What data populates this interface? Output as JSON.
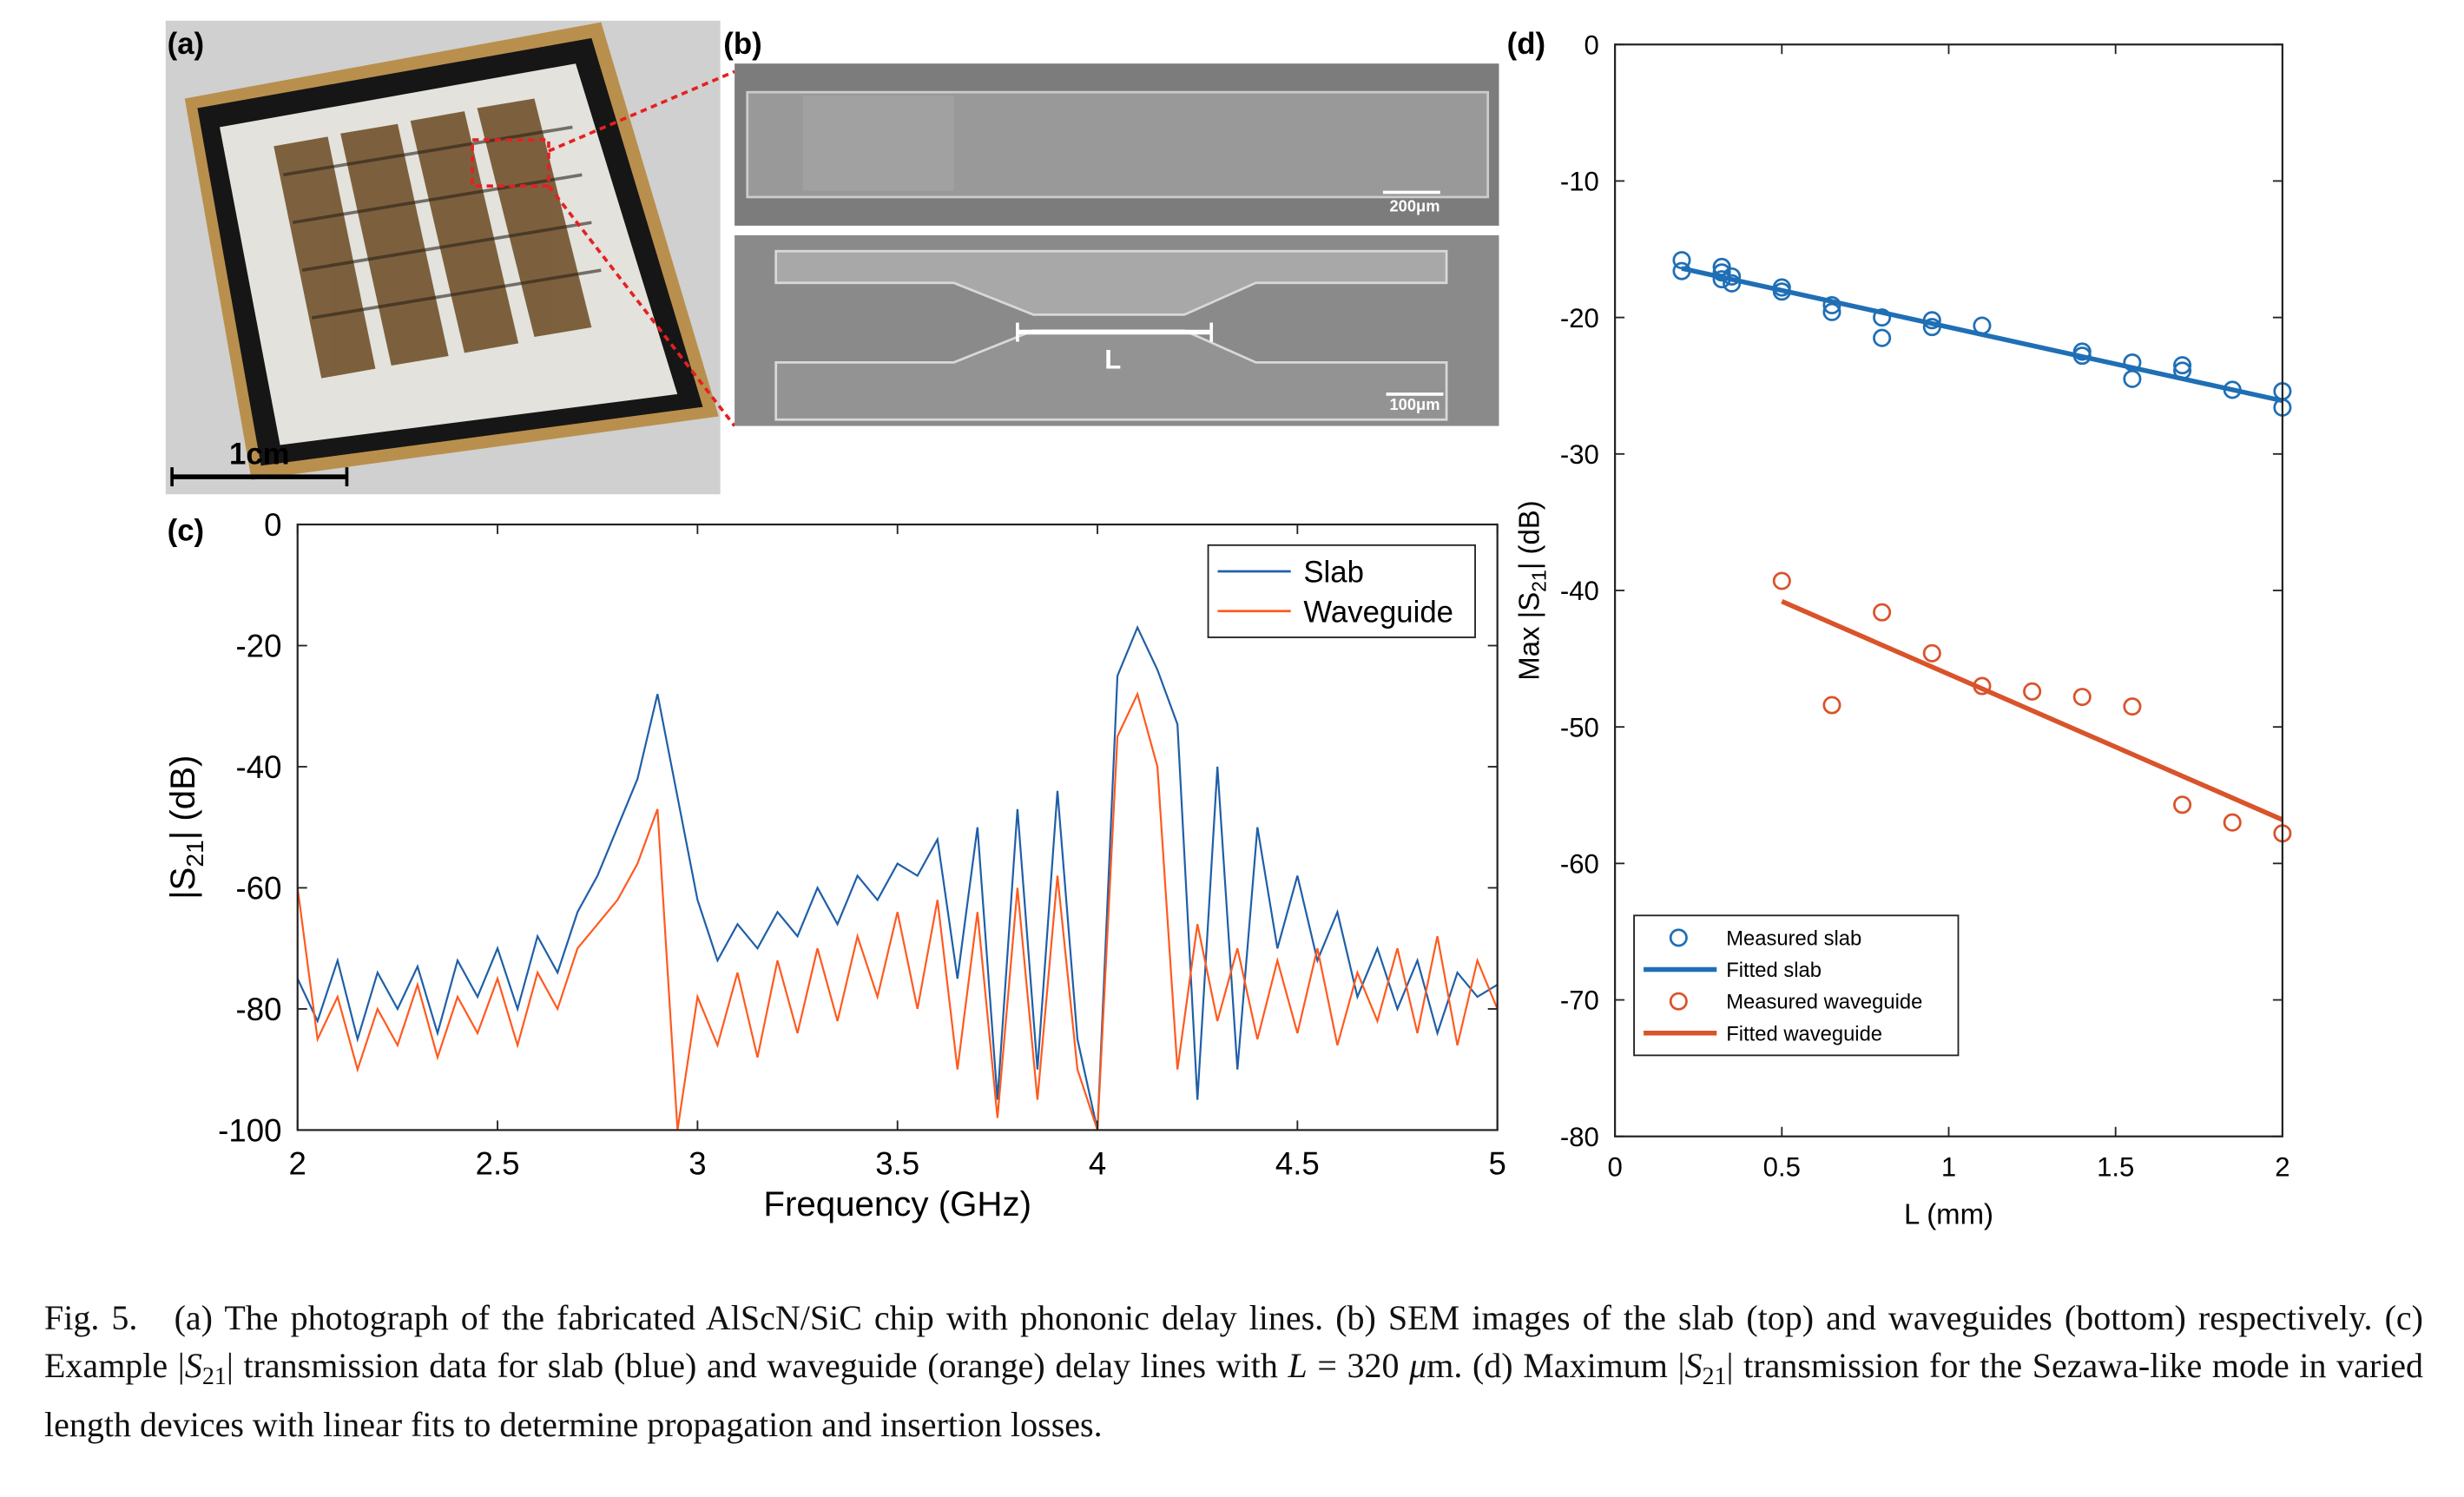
{
  "panels": {
    "a": {
      "label": "(a)",
      "scale": "1cm"
    },
    "b": {
      "label": "(b)",
      "scale_top": "200μm",
      "scale_bottom": "100μm",
      "length": "L"
    },
    "c": {
      "label": "(c)"
    },
    "d": {
      "label": "(d)"
    }
  },
  "chart_data": [
    {
      "type": "line",
      "xlabel": "Frequency (GHz)",
      "ylabel": {
        "text": "|S",
        "sub": "21",
        "tail": "| (dB)"
      },
      "x": [
        2,
        2.05,
        2.1,
        2.15,
        2.2,
        2.25,
        2.3,
        2.35,
        2.4,
        2.45,
        2.5,
        2.55,
        2.6,
        2.65,
        2.7,
        2.75,
        2.8,
        2.85,
        2.9,
        2.95,
        3,
        3.05,
        3.1,
        3.15,
        3.2,
        3.25,
        3.3,
        3.35,
        3.4,
        3.45,
        3.5,
        3.55,
        3.6,
        3.65,
        3.7,
        3.75,
        3.8,
        3.85,
        3.9,
        3.95,
        4,
        4.05,
        4.1,
        4.15,
        4.2,
        4.25,
        4.3,
        4.35,
        4.4,
        4.45,
        4.5,
        4.55,
        4.6,
        4.65,
        4.7,
        4.75,
        4.8,
        4.85,
        4.9,
        4.95,
        5
      ],
      "series": [
        {
          "name": "Slab",
          "color": "#1f5fa8",
          "values": [
            -75,
            -82,
            -72,
            -85,
            -74,
            -80,
            -73,
            -84,
            -72,
            -78,
            -70,
            -80,
            -68,
            -74,
            -64,
            -58,
            -50,
            -42,
            -28,
            -45,
            -62,
            -72,
            -66,
            -70,
            -64,
            -68,
            -60,
            -66,
            -58,
            -62,
            -56,
            -58,
            -52,
            -75,
            -50,
            -95,
            -47,
            -90,
            -44,
            -85,
            -100,
            -25,
            -17,
            -24,
            -33,
            -95,
            -40,
            -90,
            -50,
            -70,
            -58,
            -72,
            -64,
            -78,
            -70,
            -80,
            -72,
            -84,
            -74,
            -78,
            -76
          ]
        },
        {
          "name": "Waveguide",
          "color": "#ff5a1f",
          "values": [
            -60,
            -85,
            -78,
            -90,
            -80,
            -86,
            -76,
            -88,
            -78,
            -84,
            -75,
            -86,
            -74,
            -80,
            -70,
            -66,
            -62,
            -56,
            -47,
            -100,
            -78,
            -86,
            -74,
            -88,
            -72,
            -84,
            -70,
            -82,
            -68,
            -78,
            -64,
            -80,
            -62,
            -90,
            -64,
            -98,
            -60,
            -95,
            -58,
            -90,
            -100,
            -35,
            -28,
            -40,
            -90,
            -66,
            -82,
            -70,
            -85,
            -72,
            -84,
            -70,
            -86,
            -74,
            -82,
            -70,
            -84,
            -68,
            -86,
            -72,
            -80
          ]
        }
      ],
      "xlim": [
        2,
        5
      ],
      "ylim": [
        -100,
        0
      ],
      "xticks": [
        2,
        2.5,
        3,
        3.5,
        4,
        4.5,
        5
      ],
      "yticks": [
        0,
        -20,
        -40,
        -60,
        -80,
        -100
      ],
      "legend": "upper right"
    },
    {
      "type": "scatter",
      "xlabel": "L (mm)",
      "ylabel": {
        "text": "Max |S",
        "sub": "21",
        "tail": "| (dB)"
      },
      "series": [
        {
          "name": "Measured slab",
          "mode": "markers",
          "color": "#1f6fb5",
          "x": [
            0.2,
            0.2,
            0.32,
            0.32,
            0.32,
            0.35,
            0.35,
            0.5,
            0.5,
            0.65,
            0.65,
            0.8,
            0.8,
            0.95,
            0.95,
            1.1,
            1.4,
            1.4,
            1.55,
            1.55,
            1.7,
            1.7,
            1.85,
            2,
            2
          ],
          "values": [
            -15.8,
            -16.6,
            -16.3,
            -16.7,
            -17.2,
            -17,
            -17.5,
            -17.8,
            -18.1,
            -19.1,
            -19.6,
            -20,
            -21.5,
            -20.2,
            -20.7,
            -20.6,
            -22.5,
            -22.8,
            -23.3,
            -24.5,
            -23.5,
            -23.9,
            -25.3,
            -25.4,
            -26.6
          ]
        },
        {
          "name": "Fitted slab",
          "mode": "line",
          "color": "#1f6fb5",
          "x": [
            0.2,
            2
          ],
          "values": [
            -16.4,
            -26.1
          ]
        },
        {
          "name": "Measured waveguide",
          "mode": "markers",
          "color": "#d9532b",
          "x": [
            0.5,
            0.65,
            0.8,
            0.95,
            1.1,
            1.25,
            1.4,
            1.55,
            1.7,
            1.85,
            2
          ],
          "values": [
            -39.3,
            -48.4,
            -41.6,
            -44.6,
            -47,
            -47.4,
            -47.8,
            -48.5,
            -55.7,
            -57,
            -57.8
          ]
        },
        {
          "name": "Fitted waveguide",
          "mode": "line",
          "color": "#d9532b",
          "x": [
            0.5,
            2
          ],
          "values": [
            -40.8,
            -56.8
          ]
        }
      ],
      "xlim": [
        0,
        2
      ],
      "ylim": [
        -80,
        0
      ],
      "xticks": [
        0,
        0.5,
        1,
        1.5,
        2
      ],
      "yticks": [
        0,
        -10,
        -20,
        -30,
        -40,
        -50,
        -60,
        -70,
        -80
      ],
      "legend": "lower left"
    }
  ],
  "caption": [
    "Fig. 5.",
    "(a) The photograph of the fabricated AlScN/SiC chip with phononic delay lines. (b) SEM images of the slab (top) and waveguides (bottom) respectively. (c) Example |",
    "S",
    "21",
    "| transmission data for slab (blue) and waveguide (orange) delay lines with ",
    "L",
    " = 320 ",
    "μ",
    "m. (d) Maximum |",
    "S",
    "21",
    "| transmission for the Sezawa-like mode in varied length devices with linear fits to determine propagation and insertion losses."
  ]
}
